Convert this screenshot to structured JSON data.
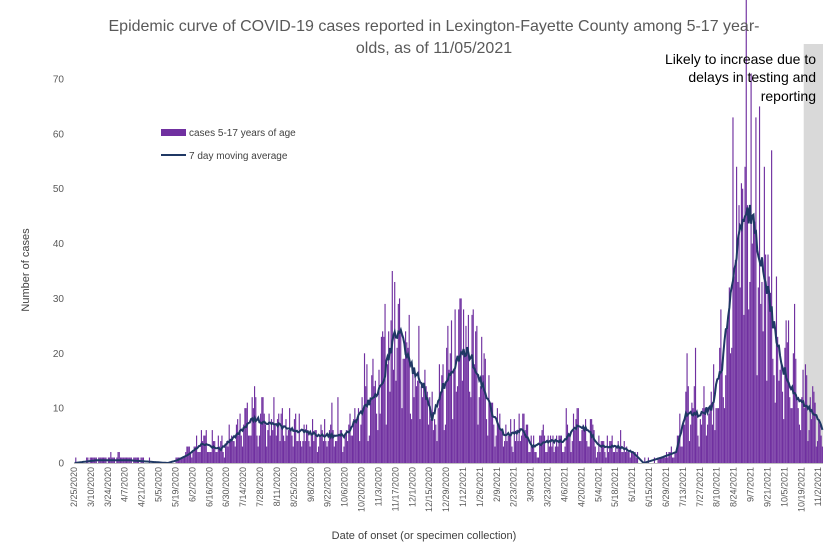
{
  "chart_data": {
    "type": "bar",
    "title_line1": "Epidemic curve of COVID-19 cases reported in Lexington-Fayette County among 5-17 year-",
    "title_line2": "olds, as of 11/05/2021",
    "xlabel": "Date of onset (or specimen collection)",
    "ylabel": "Number of cases",
    "ylim": [
      0,
      70
    ],
    "yticks": [
      0,
      10,
      20,
      30,
      40,
      50,
      60,
      70
    ],
    "x_start": "2/25/2020",
    "x_end": "11/5/2021",
    "x_tick_labels": [
      "2/25/2020",
      "3/10/2020",
      "3/24/2020",
      "4/7/2020",
      "4/21/2020",
      "5/5/2020",
      "5/19/2020",
      "6/2/2020",
      "6/16/2020",
      "6/30/2020",
      "7/14/2020",
      "7/28/2020",
      "8/11/2020",
      "8/25/2020",
      "9/8/2020",
      "9/22/2020",
      "10/6/2020",
      "10/20/2020",
      "11/3/2020",
      "11/17/2020",
      "12/1/2020",
      "12/15/2020",
      "12/29/2020",
      "1/12/2021",
      "1/26/2021",
      "2/9/2021",
      "2/23/2021",
      "3/9/2021",
      "3/23/2021",
      "4/6/2021",
      "4/20/2021",
      "5/4/2021",
      "5/18/2021",
      "6/1/2021",
      "6/15/2021",
      "6/29/2021",
      "7/13/2021",
      "7/27/2021",
      "8/10/2021",
      "8/24/2021",
      "9/7/2021",
      "9/21/2021",
      "10/5/2021",
      "10/19/2021",
      "11/2/2021"
    ],
    "shaded_region": {
      "start": "10/21/2021",
      "end": "11/5/2021",
      "color": "#d9d9d9"
    },
    "annotation_lines": [
      "Likely to increase due to",
      "delays in testing and",
      "reporting"
    ],
    "legend": {
      "position": "top-left"
    },
    "series": [
      {
        "name": "cases 5-17 years of age",
        "kind": "bar",
        "color": "#7030a0",
        "anchors": [
          [
            "2/25/2020",
            0
          ],
          [
            "3/14/2020",
            1
          ],
          [
            "4/10/2020",
            1
          ],
          [
            "5/12/2020",
            0
          ],
          [
            "5/20/2020",
            1
          ],
          [
            "5/29/2020",
            2
          ],
          [
            "6/10/2020",
            4
          ],
          [
            "6/25/2020",
            3
          ],
          [
            "7/10/2020",
            6
          ],
          [
            "7/22/2020",
            8
          ],
          [
            "8/10/2020",
            7
          ],
          [
            "8/26/2020",
            6
          ],
          [
            "9/15/2020",
            5
          ],
          [
            "10/6/2020",
            5
          ],
          [
            "10/22/2020",
            10
          ],
          [
            "11/5/2020",
            14
          ],
          [
            "11/15/2020",
            23
          ],
          [
            "11/20/2020",
            24
          ],
          [
            "12/1/2020",
            17
          ],
          [
            "12/10/2020",
            14
          ],
          [
            "12/17/2020",
            8
          ],
          [
            "12/28/2020",
            15
          ],
          [
            "1/8/2021",
            19
          ],
          [
            "1/15/2021",
            21
          ],
          [
            "1/26/2021",
            15
          ],
          [
            "2/5/2021",
            9
          ],
          [
            "2/15/2021",
            5
          ],
          [
            "3/2/2021",
            6
          ],
          [
            "3/10/2021",
            3
          ],
          [
            "3/25/2021",
            4
          ],
          [
            "4/5/2021",
            4
          ],
          [
            "4/17/2021",
            7
          ],
          [
            "4/25/2021",
            6
          ],
          [
            "5/5/2021",
            3
          ],
          [
            "5/20/2021",
            3
          ],
          [
            "6/1/2021",
            2
          ],
          [
            "6/10/2021",
            0
          ],
          [
            "6/25/2021",
            1
          ],
          [
            "7/7/2021",
            2
          ],
          [
            "7/15/2021",
            9
          ],
          [
            "7/25/2021",
            9
          ],
          [
            "8/5/2021",
            10
          ],
          [
            "8/14/2021",
            18
          ],
          [
            "8/21/2021",
            32
          ],
          [
            "8/28/2021",
            40
          ],
          [
            "9/4/2021",
            46
          ],
          [
            "9/11/2021",
            42
          ],
          [
            "9/18/2021",
            35
          ],
          [
            "9/25/2021",
            26
          ],
          [
            "10/2/2021",
            18
          ],
          [
            "10/10/2021",
            14
          ],
          [
            "10/18/2021",
            11
          ],
          [
            "10/25/2021",
            10
          ],
          [
            "11/1/2021",
            8
          ],
          [
            "11/5/2021",
            4
          ]
        ],
        "peaks": [
          [
            "11/8/2020",
            29
          ],
          [
            "11/16/2020",
            33
          ],
          [
            "12/6/2020",
            25
          ],
          [
            "1/2/2021",
            26
          ],
          [
            "1/10/2021",
            30
          ],
          [
            "8/23/2021",
            63
          ],
          [
            "8/30/2021",
            51
          ],
          [
            "9/10/2021",
            44
          ],
          [
            "9/19/2021",
            38
          ]
        ]
      },
      {
        "name": "7 day moving average",
        "kind": "line",
        "color": "#1f3864",
        "anchors": [
          [
            "2/25/2020",
            0
          ],
          [
            "3/14/2020",
            0.5
          ],
          [
            "4/10/2020",
            0.5
          ],
          [
            "5/12/2020",
            0
          ],
          [
            "5/20/2020",
            0.5
          ],
          [
            "5/29/2020",
            1.5
          ],
          [
            "6/10/2020",
            3.5
          ],
          [
            "6/25/2020",
            2.5
          ],
          [
            "7/10/2020",
            5.5
          ],
          [
            "7/22/2020",
            8
          ],
          [
            "8/10/2020",
            7
          ],
          [
            "8/26/2020",
            6
          ],
          [
            "9/15/2020",
            5
          ],
          [
            "10/6/2020",
            5
          ],
          [
            "10/22/2020",
            10
          ],
          [
            "11/5/2020",
            14
          ],
          [
            "11/15/2020",
            23
          ],
          [
            "11/20/2020",
            24
          ],
          [
            "12/1/2020",
            17
          ],
          [
            "12/10/2020",
            14
          ],
          [
            "12/17/2020",
            8
          ],
          [
            "12/28/2020",
            15
          ],
          [
            "1/8/2021",
            19
          ],
          [
            "1/15/2021",
            21
          ],
          [
            "1/26/2021",
            15
          ],
          [
            "2/5/2021",
            9
          ],
          [
            "2/15/2021",
            5
          ],
          [
            "3/2/2021",
            6
          ],
          [
            "3/10/2021",
            3
          ],
          [
            "3/25/2021",
            4
          ],
          [
            "4/5/2021",
            4
          ],
          [
            "4/17/2021",
            7
          ],
          [
            "4/25/2021",
            6
          ],
          [
            "5/5/2021",
            3
          ],
          [
            "5/20/2021",
            3
          ],
          [
            "6/1/2021",
            2
          ],
          [
            "6/10/2021",
            0
          ],
          [
            "6/25/2021",
            1
          ],
          [
            "7/7/2021",
            2
          ],
          [
            "7/15/2021",
            9
          ],
          [
            "7/25/2021",
            9
          ],
          [
            "8/5/2021",
            10
          ],
          [
            "8/14/2021",
            18
          ],
          [
            "8/21/2021",
            32
          ],
          [
            "8/28/2021",
            40
          ],
          [
            "9/4/2021",
            46
          ],
          [
            "9/11/2021",
            42
          ],
          [
            "9/18/2021",
            35
          ],
          [
            "9/25/2021",
            26
          ],
          [
            "10/2/2021",
            18
          ],
          [
            "10/10/2021",
            14
          ],
          [
            "10/18/2021",
            11
          ],
          [
            "10/25/2021",
            10
          ],
          [
            "11/1/2021",
            8
          ],
          [
            "11/5/2021",
            6
          ]
        ]
      }
    ]
  }
}
